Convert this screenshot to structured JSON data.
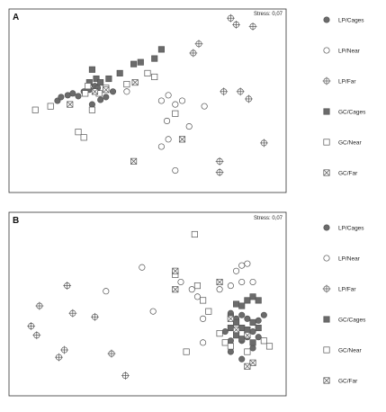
{
  "chart_data": [
    {
      "type": "scatter",
      "panel_label": "A",
      "stress_text": "Stress: 0,07",
      "xlabel": "",
      "ylabel": "",
      "xlim": [
        0,
        100
      ],
      "ylim": [
        0,
        100
      ],
      "grid": false,
      "legend_placement": "right",
      "series": [
        {
          "name": "LP/Cages",
          "marker": "circle-filled",
          "points": [
            [
              17.5,
              50
            ],
            [
              18.8,
              52
            ],
            [
              21.2,
              53
            ],
            [
              23,
              54
            ],
            [
              25,
              52.5
            ],
            [
              27,
              55
            ],
            [
              29,
              56
            ],
            [
              31,
              58
            ],
            [
              32,
              57
            ],
            [
              33,
              50.5
            ],
            [
              35,
              52
            ],
            [
              37.5,
              55
            ],
            [
              30,
              48
            ]
          ]
        },
        {
          "name": "LP/Near",
          "marker": "circle-open",
          "points": [
            [
              42.5,
              55
            ],
            [
              55,
              50
            ],
            [
              57.5,
              53
            ],
            [
              62.5,
              50
            ],
            [
              70.5,
              47
            ],
            [
              60,
              48
            ],
            [
              57,
              39
            ],
            [
              57.5,
              29
            ],
            [
              55,
              25
            ],
            [
              65,
              36
            ],
            [
              60,
              12
            ]
          ]
        },
        {
          "name": "LP/Far",
          "marker": "circle-cross",
          "points": [
            [
              80,
              95
            ],
            [
              82,
              91.5
            ],
            [
              88,
              90.5
            ],
            [
              68.5,
              81
            ],
            [
              66.5,
              76
            ],
            [
              77.5,
              55
            ],
            [
              83.5,
              55
            ],
            [
              86.5,
              51
            ],
            [
              92,
              27
            ],
            [
              76,
              17
            ],
            [
              76,
              11
            ]
          ]
        },
        {
          "name": "GC/Cages",
          "marker": "square-filled",
          "points": [
            [
              30,
              67
            ],
            [
              31.5,
              62
            ],
            [
              29,
              60
            ],
            [
              33,
              60
            ],
            [
              36,
              62
            ],
            [
              40,
              65
            ],
            [
              45,
              70
            ],
            [
              47.5,
              71
            ],
            [
              52.5,
              73
            ],
            [
              55,
              78
            ]
          ]
        },
        {
          "name": "GC/Near",
          "marker": "square-open",
          "points": [
            [
              9.5,
              45
            ],
            [
              15,
              47
            ],
            [
              28.5,
              58
            ],
            [
              27.5,
              54
            ],
            [
              32.5,
              54
            ],
            [
              35,
              57
            ],
            [
              30,
              45
            ],
            [
              42.5,
              59
            ],
            [
              50,
              65
            ],
            [
              52.5,
              63
            ],
            [
              60,
              43
            ],
            [
              25,
              33
            ],
            [
              27,
              30
            ]
          ]
        },
        {
          "name": "GC/Far",
          "marker": "square-cross",
          "points": [
            [
              22,
              48
            ],
            [
              31,
              55
            ],
            [
              35,
              56
            ],
            [
              45.5,
              60
            ],
            [
              62.5,
              29
            ],
            [
              45,
              17
            ]
          ]
        }
      ]
    },
    {
      "type": "scatter",
      "panel_label": "B",
      "stress_text": "Stress: 0,07",
      "xlabel": "",
      "ylabel": "",
      "xlim": [
        0,
        100
      ],
      "ylim": [
        0,
        100
      ],
      "grid": false,
      "legend_placement": "right",
      "series": [
        {
          "name": "LP/Cages",
          "marker": "circle-filled",
          "points": [
            [
              80,
              45
            ],
            [
              82,
              42
            ],
            [
              84,
              44
            ],
            [
              86,
              42
            ],
            [
              90,
              41
            ],
            [
              92,
              44
            ],
            [
              78,
              35
            ],
            [
              80,
              30
            ],
            [
              84,
              30
            ],
            [
              86,
              32
            ],
            [
              88,
              35
            ],
            [
              90,
              32
            ],
            [
              88,
              26
            ],
            [
              84,
              20
            ],
            [
              80,
              24
            ]
          ]
        },
        {
          "name": "LP/Near",
          "marker": "circle-open",
          "points": [
            [
              48,
              70
            ],
            [
              35,
              57
            ],
            [
              52,
              46
            ],
            [
              62,
              62
            ],
            [
              66,
              58
            ],
            [
              68,
              54
            ],
            [
              70,
              42
            ],
            [
              70,
              29
            ],
            [
              76,
              58
            ],
            [
              80,
              60
            ],
            [
              84,
              62
            ],
            [
              82,
              68
            ],
            [
              84,
              71
            ],
            [
              86,
              72
            ],
            [
              88,
              62
            ]
          ]
        },
        {
          "name": "LP/Far",
          "marker": "circle-cross",
          "points": [
            [
              21,
              60
            ],
            [
              11,
              49
            ],
            [
              23,
              45
            ],
            [
              31,
              43
            ],
            [
              8,
              38
            ],
            [
              10,
              33
            ],
            [
              20,
              25
            ],
            [
              18,
              21
            ],
            [
              37,
              23
            ],
            [
              42,
              11
            ]
          ]
        },
        {
          "name": "GC/Cages",
          "marker": "square-filled",
          "points": [
            [
              82,
              50
            ],
            [
              84,
              49
            ],
            [
              86,
              52
            ],
            [
              88,
              54
            ],
            [
              90,
              52
            ],
            [
              80,
              43
            ],
            [
              82,
              40
            ],
            [
              84,
              37
            ],
            [
              86,
              36
            ],
            [
              88,
              40
            ],
            [
              90,
              37
            ],
            [
              82,
              33
            ],
            [
              84,
              31
            ],
            [
              88,
              29
            ],
            [
              80,
              37
            ]
          ]
        },
        {
          "name": "GC/Near",
          "marker": "square-open",
          "points": [
            [
              67,
              88
            ],
            [
              60,
              66
            ],
            [
              68,
              60
            ],
            [
              70,
              52
            ],
            [
              72,
              46
            ],
            [
              76,
              34
            ],
            [
              78,
              29
            ],
            [
              80,
              27
            ],
            [
              86,
              24
            ],
            [
              92,
              30
            ],
            [
              94,
              27
            ],
            [
              64,
              24
            ]
          ]
        },
        {
          "name": "GC/Far",
          "marker": "square-cross",
          "points": [
            [
              60,
              68
            ],
            [
              76,
              62
            ],
            [
              60,
              58
            ],
            [
              80,
              42
            ],
            [
              82,
              36
            ],
            [
              86,
              33
            ],
            [
              88,
              18
            ],
            [
              86,
              16
            ]
          ]
        }
      ]
    }
  ],
  "colors": {
    "filled": "#6b6b6b",
    "stroke": "#555555"
  }
}
